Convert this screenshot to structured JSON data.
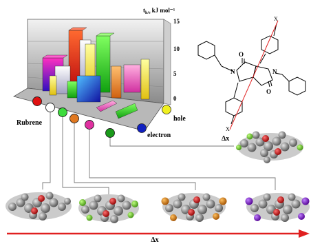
{
  "chart3d": {
    "axis_title_main": "t",
    "axis_title_sub": "h/e",
    "axis_title_unit": "kJ mol⁻¹",
    "ticks": [
      "15",
      "10",
      "5",
      "0"
    ],
    "hole_label": "hole",
    "electron_label": "electron",
    "rubrene_label": "Rubrene"
  },
  "molecule": {
    "oxygen_top": "O",
    "oxygen_bottom": "O",
    "nitrogen_left": "N",
    "nitrogen_right": "N",
    "substituent_top": "X",
    "substituent_bottom": "X",
    "label": "Δx"
  },
  "bottom_axis_label": "Δx",
  "colors": {
    "red": "#e01010",
    "white": "#ffffff",
    "green_light": "#3cdc3c",
    "orange": "#e07820",
    "magenta": "#e030a0",
    "green_dark": "#1a9a1a",
    "yellow": "#f0f020",
    "blue": "#1020c0",
    "axis_arrow": "#e02020"
  }
}
